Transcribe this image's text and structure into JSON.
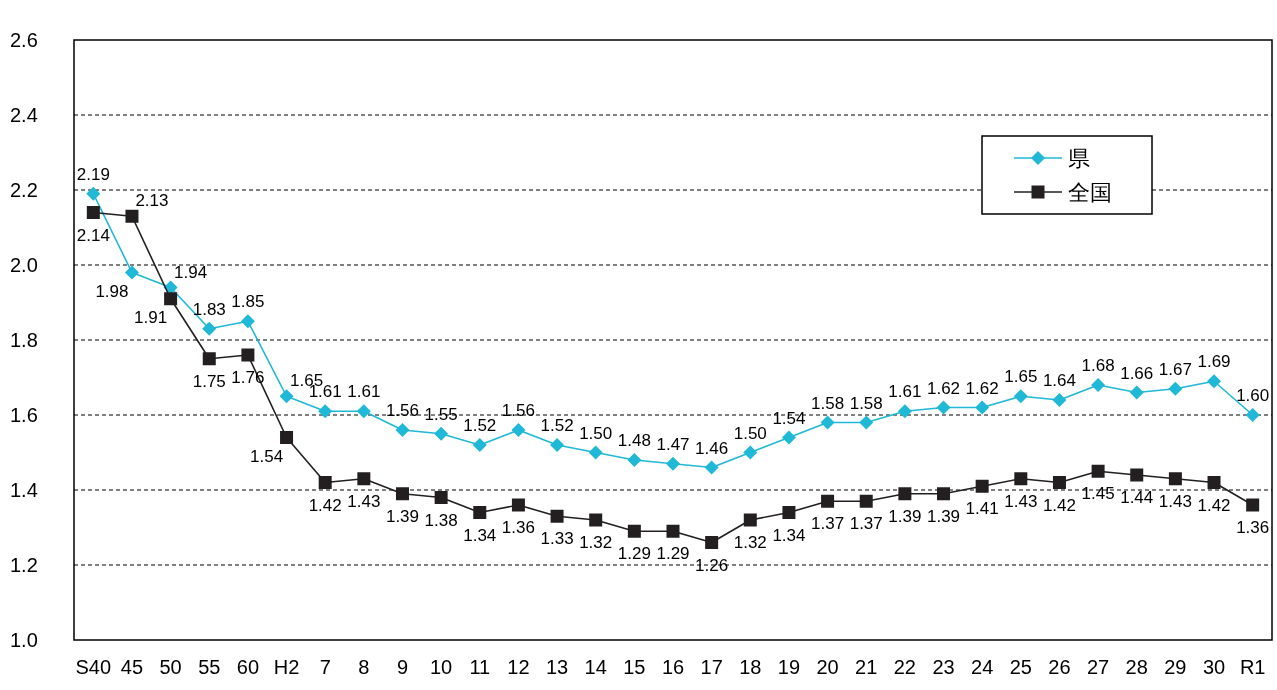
{
  "chart_data": {
    "type": "line",
    "categories": [
      "S40",
      "45",
      "50",
      "55",
      "60",
      "H2",
      "7",
      "8",
      "9",
      "10",
      "11",
      "12",
      "13",
      "14",
      "15",
      "16",
      "17",
      "18",
      "19",
      "20",
      "21",
      "22",
      "23",
      "24",
      "25",
      "26",
      "27",
      "28",
      "29",
      "30",
      "R1"
    ],
    "series": [
      {
        "name": "県",
        "color": "#1fb8d6",
        "marker": "diamond",
        "values": [
          2.19,
          1.98,
          1.94,
          1.83,
          1.85,
          1.65,
          1.61,
          1.61,
          1.56,
          1.55,
          1.52,
          1.56,
          1.52,
          1.5,
          1.48,
          1.47,
          1.46,
          1.5,
          1.54,
          1.58,
          1.58,
          1.61,
          1.62,
          1.62,
          1.65,
          1.64,
          1.68,
          1.66,
          1.67,
          1.69,
          1.6
        ],
        "value_labels": [
          "2.19",
          "1.98",
          "1.94",
          "1.83",
          "1.85",
          "1.65",
          "1.61",
          "1.61",
          "1.56",
          "1.55",
          "1.52",
          "1.56",
          "1.52",
          "1.50",
          "1.48",
          "1.47",
          "1.46",
          "1.50",
          "1.54",
          "1.58",
          "1.58",
          "1.61",
          "1.62",
          "1.62",
          "1.65",
          "1.64",
          "1.68",
          "1.66",
          "1.67",
          "1.69",
          "1.60"
        ]
      },
      {
        "name": "全国",
        "color": "#231f20",
        "marker": "square",
        "values": [
          2.14,
          2.13,
          1.91,
          1.75,
          1.76,
          1.54,
          1.42,
          1.43,
          1.39,
          1.38,
          1.34,
          1.36,
          1.33,
          1.32,
          1.29,
          1.29,
          1.26,
          1.32,
          1.34,
          1.37,
          1.37,
          1.39,
          1.39,
          1.41,
          1.43,
          1.42,
          1.45,
          1.44,
          1.43,
          1.42,
          1.36
        ],
        "value_labels": [
          "2.14",
          "2.13",
          "1.91",
          "1.75",
          "1.76",
          "1.54",
          "1.42",
          "1.43",
          "1.39",
          "1.38",
          "1.34",
          "1.36",
          "1.33",
          "1.32",
          "1.29",
          "1.29",
          "1.26",
          "1.32",
          "1.34",
          "1.37",
          "1.37",
          "1.39",
          "1.39",
          "1.41",
          "1.43",
          "1.42",
          "1.45",
          "1.44",
          "1.43",
          "1.42",
          "1.36"
        ]
      }
    ],
    "ylim": [
      1.0,
      2.6
    ],
    "yticks": [
      {
        "value": 1.0,
        "label": "1.0"
      },
      {
        "value": 1.2,
        "label": "1.2"
      },
      {
        "value": 1.4,
        "label": "1.4"
      },
      {
        "value": 1.6,
        "label": "1.6"
      },
      {
        "value": 1.8,
        "label": "1.8"
      },
      {
        "value": 2.0,
        "label": "2.0"
      },
      {
        "value": 2.2,
        "label": "2.2"
      },
      {
        "value": 2.4,
        "label": "2.4"
      },
      {
        "value": 2.6,
        "label": "2.6"
      }
    ],
    "grid": "y",
    "legend": "top right"
  }
}
